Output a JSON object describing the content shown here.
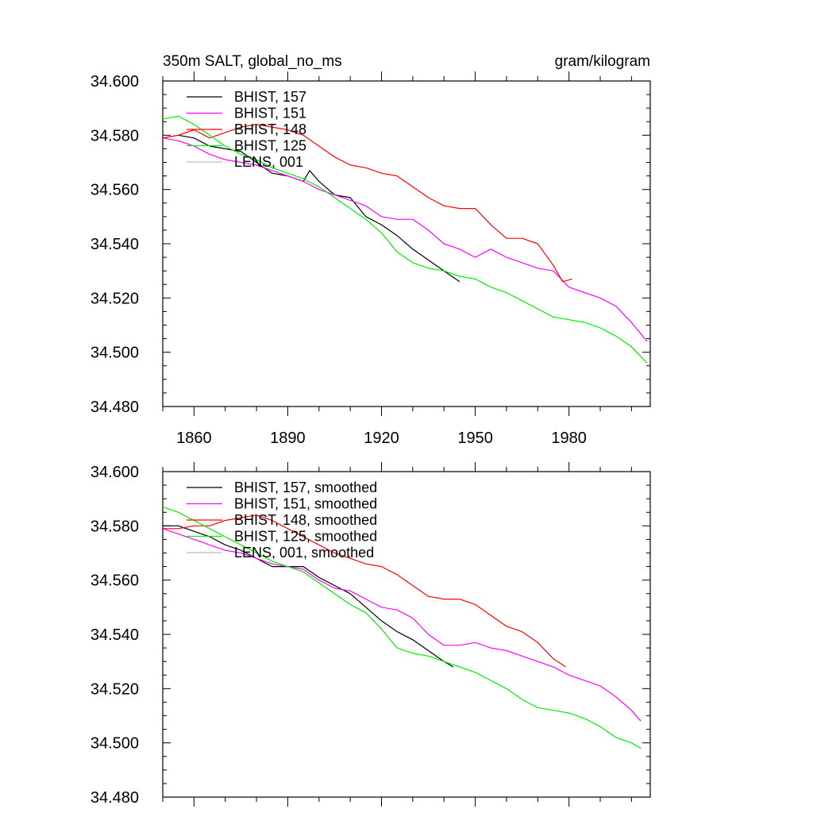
{
  "colors": {
    "BHIST_157": "#000000",
    "BHIST_151": "#ff00ff",
    "BHIST_148": "#ff0000",
    "BHIST_125": "#00ee00",
    "LENS_001": "#bbbbbb"
  },
  "chart_data": [
    {
      "type": "line",
      "title": "350m SALT, global_no_ms",
      "units": "gram/kilogram",
      "xlim": [
        1850,
        2006
      ],
      "ylim": [
        34.48,
        34.6
      ],
      "x_ticks": [
        1860,
        1890,
        1920,
        1950,
        1980
      ],
      "x_tick_labels": [
        "1860",
        "1890",
        "1920",
        "1950",
        "1980"
      ],
      "y_ticks": [
        34.48,
        34.5,
        34.52,
        34.54,
        34.56,
        34.58,
        34.6
      ],
      "y_tick_labels": [
        "34.480",
        "34.500",
        "34.520",
        "34.540",
        "34.560",
        "34.580",
        "34.600"
      ],
      "legend_position": "top-left",
      "series": [
        {
          "name": "BHIST, 157",
          "color_key": "BHIST_157",
          "x": [
            1850,
            1855,
            1860,
            1865,
            1870,
            1875,
            1880,
            1885,
            1890,
            1895,
            1897,
            1900,
            1905,
            1910,
            1915,
            1920,
            1925,
            1930,
            1935,
            1940,
            1945
          ],
          "y": [
            34.579,
            34.58,
            34.579,
            34.576,
            34.575,
            34.574,
            34.57,
            34.566,
            34.565,
            34.563,
            34.567,
            34.563,
            34.558,
            34.557,
            34.55,
            34.547,
            34.543,
            34.538,
            34.534,
            34.53,
            34.526
          ]
        },
        {
          "name": "BHIST, 151",
          "color_key": "BHIST_151",
          "x": [
            1850,
            1855,
            1860,
            1865,
            1870,
            1875,
            1880,
            1885,
            1890,
            1895,
            1900,
            1905,
            1910,
            1915,
            1920,
            1925,
            1930,
            1935,
            1940,
            1945,
            1950,
            1955,
            1960,
            1965,
            1970,
            1975,
            1980,
            1985,
            1990,
            1995,
            2000,
            2005
          ],
          "y": [
            34.579,
            34.578,
            34.576,
            34.573,
            34.571,
            34.57,
            34.569,
            34.567,
            34.565,
            34.563,
            34.56,
            34.558,
            34.556,
            34.554,
            34.55,
            34.549,
            34.549,
            34.545,
            34.54,
            34.538,
            34.535,
            34.538,
            34.535,
            34.533,
            34.531,
            34.53,
            34.524,
            34.522,
            34.52,
            34.517,
            34.511,
            34.504
          ]
        },
        {
          "name": "BHIST, 148",
          "color_key": "BHIST_148",
          "x": [
            1850,
            1855,
            1860,
            1865,
            1870,
            1875,
            1880,
            1885,
            1890,
            1895,
            1900,
            1905,
            1910,
            1915,
            1920,
            1925,
            1930,
            1935,
            1940,
            1945,
            1950,
            1955,
            1960,
            1965,
            1970,
            1975,
            1978,
            1981
          ],
          "y": [
            34.579,
            34.58,
            34.582,
            34.579,
            34.581,
            34.583,
            34.584,
            34.583,
            34.582,
            34.58,
            34.576,
            34.572,
            34.569,
            34.568,
            34.566,
            34.565,
            34.561,
            34.557,
            34.554,
            34.553,
            34.553,
            34.547,
            34.542,
            34.542,
            34.54,
            34.532,
            34.526,
            34.527
          ]
        },
        {
          "name": "BHIST, 125",
          "color_key": "BHIST_125",
          "x": [
            1850,
            1855,
            1860,
            1865,
            1870,
            1875,
            1880,
            1885,
            1890,
            1895,
            1900,
            1905,
            1910,
            1915,
            1920,
            1925,
            1930,
            1935,
            1940,
            1945,
            1950,
            1955,
            1960,
            1965,
            1970,
            1975,
            1980,
            1985,
            1990,
            1995,
            2000,
            2005
          ],
          "y": [
            34.586,
            34.587,
            34.584,
            34.58,
            34.576,
            34.573,
            34.571,
            34.568,
            34.566,
            34.564,
            34.561,
            34.557,
            34.553,
            34.549,
            34.544,
            34.537,
            34.533,
            34.531,
            34.53,
            34.528,
            34.527,
            34.524,
            34.522,
            34.519,
            34.516,
            34.513,
            34.512,
            34.511,
            34.509,
            34.506,
            34.502,
            34.496
          ]
        },
        {
          "name": "LENS, 001",
          "color_key": "LENS_001",
          "x": [],
          "y": []
        }
      ]
    },
    {
      "type": "line",
      "title": "",
      "units": "",
      "xlim": [
        1850,
        2006
      ],
      "ylim": [
        34.48,
        34.6
      ],
      "x_ticks": [
        1860,
        1890,
        1920,
        1950,
        1980
      ],
      "x_tick_labels": [],
      "y_ticks": [
        34.48,
        34.5,
        34.52,
        34.54,
        34.56,
        34.58,
        34.6
      ],
      "y_tick_labels": [
        "34.480",
        "34.500",
        "34.520",
        "34.540",
        "34.560",
        "34.580",
        "34.600"
      ],
      "legend_position": "top-left",
      "series": [
        {
          "name": "BHIST, 157, smoothed",
          "color_key": "BHIST_157",
          "x": [
            1850,
            1855,
            1860,
            1865,
            1870,
            1875,
            1880,
            1885,
            1890,
            1895,
            1900,
            1905,
            1910,
            1915,
            1920,
            1925,
            1930,
            1935,
            1940,
            1943
          ],
          "y": [
            34.58,
            34.58,
            34.578,
            34.576,
            34.573,
            34.571,
            34.568,
            34.565,
            34.565,
            34.565,
            34.561,
            34.558,
            34.555,
            34.55,
            34.545,
            34.541,
            34.538,
            34.534,
            34.53,
            34.528
          ]
        },
        {
          "name": "BHIST, 151, smoothed",
          "color_key": "BHIST_151",
          "x": [
            1850,
            1855,
            1860,
            1865,
            1870,
            1875,
            1880,
            1885,
            1890,
            1895,
            1900,
            1905,
            1910,
            1915,
            1920,
            1925,
            1930,
            1935,
            1940,
            1945,
            1950,
            1955,
            1960,
            1965,
            1970,
            1975,
            1980,
            1985,
            1990,
            1995,
            2000,
            2003
          ],
          "y": [
            34.579,
            34.577,
            34.575,
            34.573,
            34.571,
            34.57,
            34.568,
            34.566,
            34.565,
            34.564,
            34.56,
            34.557,
            34.556,
            34.553,
            34.55,
            34.549,
            34.546,
            34.54,
            34.536,
            34.536,
            34.537,
            34.535,
            34.534,
            34.532,
            34.53,
            34.528,
            34.525,
            34.523,
            34.521,
            34.517,
            34.512,
            34.508
          ]
        },
        {
          "name": "BHIST, 148, smoothed",
          "color_key": "BHIST_148",
          "x": [
            1850,
            1855,
            1860,
            1865,
            1870,
            1875,
            1880,
            1885,
            1890,
            1895,
            1900,
            1905,
            1910,
            1915,
            1920,
            1925,
            1930,
            1935,
            1940,
            1945,
            1950,
            1955,
            1960,
            1965,
            1970,
            1975,
            1979
          ],
          "y": [
            34.579,
            34.579,
            34.58,
            34.58,
            34.582,
            34.583,
            34.584,
            34.582,
            34.579,
            34.576,
            34.573,
            34.57,
            34.568,
            34.566,
            34.565,
            34.562,
            34.558,
            34.554,
            34.553,
            34.553,
            34.551,
            34.547,
            34.543,
            34.541,
            34.537,
            34.531,
            34.528
          ]
        },
        {
          "name": "BHIST, 125, smoothed",
          "color_key": "BHIST_125",
          "x": [
            1850,
            1855,
            1860,
            1865,
            1870,
            1875,
            1880,
            1885,
            1890,
            1895,
            1900,
            1905,
            1910,
            1915,
            1920,
            1925,
            1930,
            1935,
            1940,
            1945,
            1950,
            1955,
            1960,
            1965,
            1970,
            1975,
            1980,
            1985,
            1990,
            1995,
            2000,
            2003
          ],
          "y": [
            34.587,
            34.585,
            34.582,
            34.579,
            34.576,
            34.573,
            34.57,
            34.567,
            34.565,
            34.563,
            34.559,
            34.555,
            34.551,
            34.548,
            34.542,
            34.535,
            34.533,
            34.532,
            34.53,
            34.528,
            34.526,
            34.523,
            34.52,
            34.516,
            34.513,
            34.512,
            34.511,
            34.509,
            34.506,
            34.502,
            34.5,
            34.498
          ]
        },
        {
          "name": "LENS, 001, smoothed",
          "color_key": "LENS_001",
          "x": [],
          "y": []
        }
      ]
    }
  ]
}
